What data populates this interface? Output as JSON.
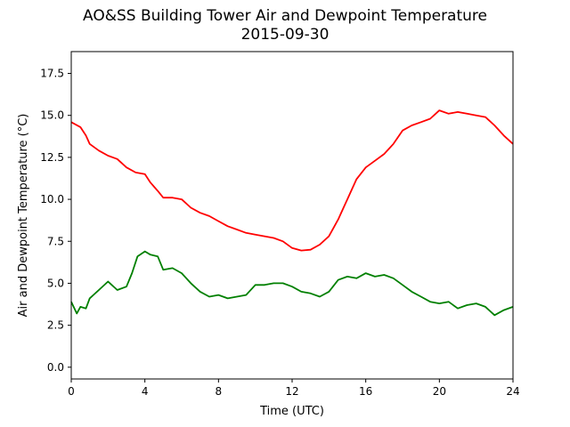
{
  "chart_data": {
    "type": "line",
    "title": "AO&SS Building Tower Air and Dewpoint Temperature",
    "subtitle": "2015-09-30",
    "xlabel": "Time (UTC)",
    "ylabel": "Air and Dewpoint Temperature (°C)",
    "xlim": [
      0,
      24
    ],
    "ylim": [
      -0.7,
      18.8
    ],
    "xticks": [
      0,
      4,
      8,
      12,
      16,
      20,
      24
    ],
    "yticks": [
      0.0,
      2.5,
      5.0,
      7.5,
      10.0,
      12.5,
      15.0,
      17.5
    ],
    "ytick_labels": [
      "0.0",
      "2.5",
      "5.0",
      "7.5",
      "10.0",
      "12.5",
      "15.0",
      "17.5"
    ],
    "grid": false,
    "series": [
      {
        "color": "#ff0000",
        "x": [
          0,
          0.5,
          0.8,
          1.0,
          1.5,
          2.0,
          2.5,
          3.0,
          3.5,
          4.0,
          4.3,
          4.7,
          5.0,
          5.5,
          6.0,
          6.5,
          7.0,
          7.5,
          8.0,
          8.5,
          9.0,
          9.5,
          10.0,
          10.5,
          11.0,
          11.5,
          12.0,
          12.5,
          13.0,
          13.5,
          14.0,
          14.5,
          15.0,
          15.5,
          16.0,
          16.5,
          17.0,
          17.5,
          18.0,
          18.5,
          19.0,
          19.5,
          20.0,
          20.5,
          21.0,
          21.5,
          22.0,
          22.5,
          23.0,
          23.5,
          24.0
        ],
        "values": [
          14.6,
          14.3,
          13.8,
          13.3,
          12.9,
          12.6,
          12.4,
          11.9,
          11.6,
          11.5,
          11.0,
          10.5,
          10.1,
          10.1,
          10.0,
          9.5,
          9.2,
          9.0,
          8.7,
          8.4,
          8.2,
          8.0,
          7.9,
          7.8,
          7.7,
          7.5,
          7.1,
          6.95,
          7.0,
          7.3,
          7.8,
          8.8,
          10.0,
          11.2,
          11.9,
          12.3,
          12.7,
          13.3,
          14.1,
          14.4,
          14.6,
          14.8,
          15.3,
          15.1,
          15.2,
          15.1,
          15.0,
          14.9,
          14.4,
          13.8,
          13.3
        ]
      },
      {
        "color": "#008000",
        "x": [
          0,
          0.3,
          0.5,
          0.8,
          1.0,
          1.5,
          2.0,
          2.5,
          3.0,
          3.3,
          3.6,
          4.0,
          4.3,
          4.7,
          5.0,
          5.5,
          6.0,
          6.5,
          7.0,
          7.5,
          8.0,
          8.5,
          9.0,
          9.5,
          10.0,
          10.5,
          11.0,
          11.5,
          12.0,
          12.5,
          13.0,
          13.5,
          14.0,
          14.5,
          15.0,
          15.5,
          16.0,
          16.5,
          17.0,
          17.5,
          18.0,
          18.5,
          19.0,
          19.5,
          20.0,
          20.5,
          21.0,
          21.5,
          22.0,
          22.5,
          23.0,
          23.5,
          24.0
        ],
        "values": [
          3.9,
          3.2,
          3.6,
          3.5,
          4.1,
          4.6,
          5.1,
          4.6,
          4.8,
          5.6,
          6.6,
          6.9,
          6.7,
          6.6,
          5.8,
          5.9,
          5.6,
          5.0,
          4.5,
          4.2,
          4.3,
          4.1,
          4.2,
          4.3,
          4.9,
          4.9,
          5.0,
          5.0,
          4.8,
          4.5,
          4.4,
          4.2,
          4.5,
          5.2,
          5.4,
          5.3,
          5.6,
          5.4,
          5.5,
          5.3,
          4.9,
          4.5,
          4.2,
          3.9,
          3.8,
          3.9,
          3.5,
          3.7,
          3.8,
          3.6,
          3.1,
          3.4,
          3.6
        ]
      }
    ]
  }
}
